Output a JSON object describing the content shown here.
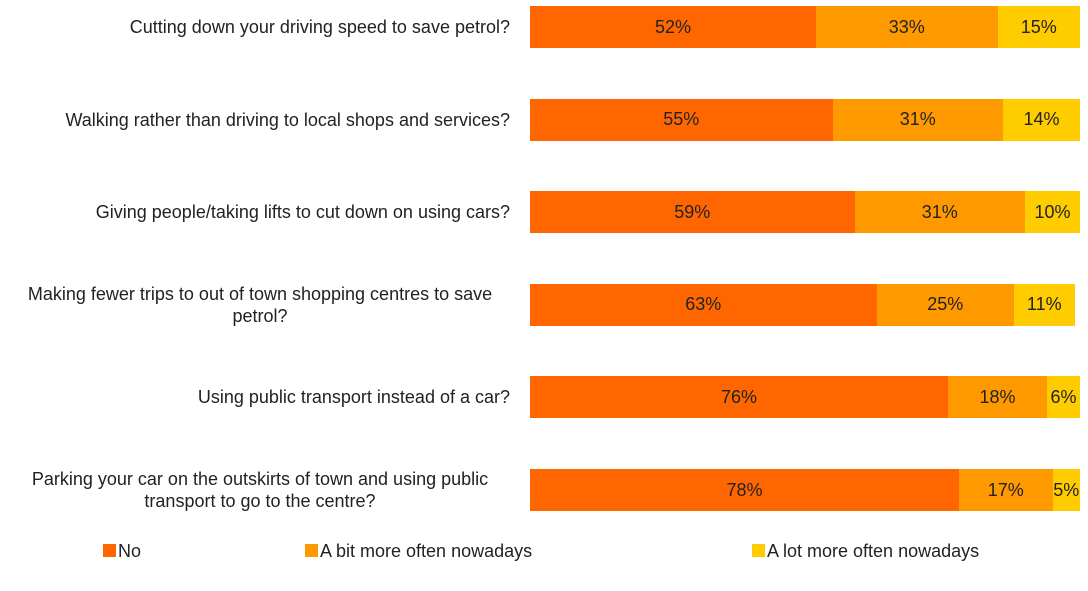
{
  "chart_data": {
    "type": "stacked-barh",
    "categories": [
      "Cutting down your driving speed to save petrol?",
      "Walking rather than driving to local shops and services?",
      "Giving people/taking lifts to cut down on using cars?",
      "Making fewer trips to out of town shopping centres to save petrol?",
      "Using public transport instead of a car?",
      "Parking your car on the outskirts of town and using public transport to go to the centre?"
    ],
    "series": [
      {
        "name": "No",
        "color": "#ff6600",
        "values": [
          52,
          55,
          59,
          63,
          76,
          78
        ],
        "value_labels": [
          "52%",
          "55%",
          "59%",
          "63%",
          "76%",
          "78%"
        ]
      },
      {
        "name": "A bit more often nowadays",
        "color": "#ff9900",
        "values": [
          33,
          31,
          31,
          25,
          18,
          17
        ],
        "value_labels": [
          "33%",
          "31%",
          "31%",
          "25%",
          "18%",
          "17%"
        ]
      },
      {
        "name": "A lot more often nowadays",
        "color": "#ffcc00",
        "values": [
          15,
          14,
          10,
          11,
          6,
          5
        ],
        "value_labels": [
          "15%",
          "14%",
          "10%",
          "11%",
          "6%",
          "5%"
        ]
      }
    ],
    "xlim": [
      0,
      100
    ],
    "legend": "bottom"
  }
}
